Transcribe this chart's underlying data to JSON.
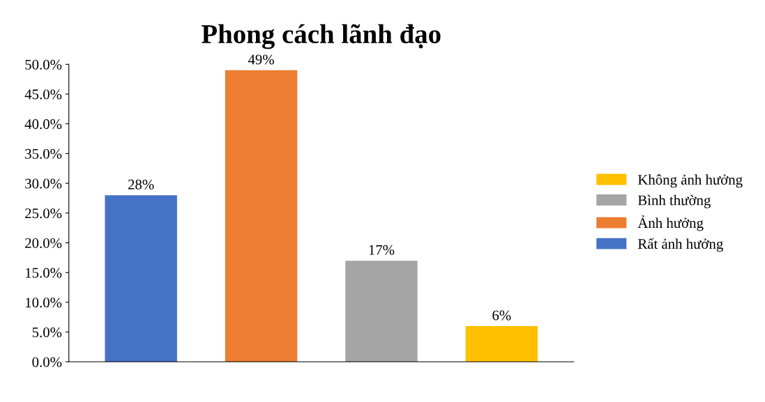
{
  "chart_data": {
    "type": "bar",
    "title": "Phong cách lãnh đạo",
    "categories": [
      null,
      null,
      null,
      null
    ],
    "series": [
      {
        "name": "Rất ảnh hưởng",
        "color": "#4472c4",
        "values": [
          28,
          null,
          null,
          null
        ]
      },
      {
        "name": "Ảnh hưởng",
        "color": "#ed7d31",
        "values": [
          null,
          49,
          null,
          null
        ]
      },
      {
        "name": "Bình thường",
        "color": "#a5a5a5",
        "values": [
          null,
          null,
          17,
          null
        ]
      },
      {
        "name": "Không ảnh hưởng",
        "color": "#ffc000",
        "values": [
          null,
          null,
          null,
          6
        ]
      }
    ],
    "value_labels": [
      "28%",
      "49%",
      "17%",
      "6%"
    ],
    "ylim": [
      0,
      50
    ],
    "yticks": [
      {
        "value": 0,
        "label": "0.0%"
      },
      {
        "value": 5,
        "label": "5.0%"
      },
      {
        "value": 10,
        "label": "10.0%"
      },
      {
        "value": 15,
        "label": "15.0%"
      },
      {
        "value": 20,
        "label": "20.0%"
      },
      {
        "value": 25,
        "label": "25.0%"
      },
      {
        "value": 30,
        "label": "30.0%"
      },
      {
        "value": 35,
        "label": "35.0%"
      },
      {
        "value": 40,
        "label": "40.0%"
      },
      {
        "value": 45,
        "label": "45.0%"
      },
      {
        "value": 50,
        "label": "50.0%"
      }
    ],
    "legend": "right",
    "grid": false
  }
}
